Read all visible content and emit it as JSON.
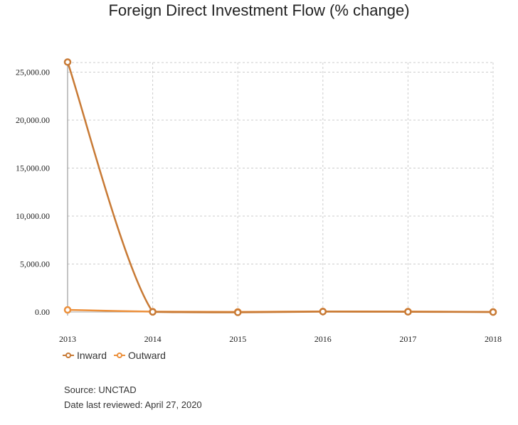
{
  "chart_data": {
    "type": "line",
    "title": "Foreign Direct Investment Flow (% change)",
    "x": [
      "2013",
      "2014",
      "2015",
      "2016",
      "2017",
      "2018"
    ],
    "ylim": [
      0,
      26000
    ],
    "yticks": [
      0,
      5000,
      10000,
      15000,
      20000,
      25000
    ],
    "ytick_labels": [
      "0.00",
      "5,000.00",
      "10,000.00",
      "15,000.00",
      "20,000.00",
      "25,000.00"
    ],
    "grid": true,
    "legend_position": "bottom-left",
    "series": [
      {
        "name": "Inward",
        "color": "#c87a35",
        "values": [
          26050,
          10,
          -40,
          40,
          20,
          -10
        ]
      },
      {
        "name": "Outward",
        "color": "#ec8f3a",
        "values": [
          220,
          40,
          10,
          60,
          50,
          10
        ]
      }
    ]
  },
  "footer": {
    "source": "Source: UNCTAD",
    "reviewed": "Date last reviewed: April 27, 2020"
  }
}
